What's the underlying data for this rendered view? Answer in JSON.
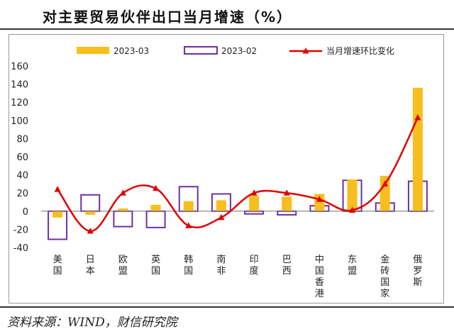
{
  "title": "对主要贸易伙伴出口当月增速（%）",
  "source": "资料来源：WIND，财信研究院",
  "colors": {
    "bar2303": "#F7BE1D",
    "bar2302": "#7030A0",
    "line": "#E00000"
  },
  "chart_data": {
    "type": "bar",
    "categories": [
      "美国",
      "日本",
      "欧盟",
      "英国",
      "韩国",
      "南非",
      "印度",
      "巴西",
      "中国香港",
      "东盟",
      "金砖国家",
      "俄罗斯"
    ],
    "series": [
      {
        "name": "2023-03",
        "type": "bar",
        "values": [
          -7,
          -4,
          3,
          7,
          11,
          12,
          17,
          16,
          19,
          35,
          39,
          136
        ]
      },
      {
        "name": "2023-02",
        "type": "bar-outline",
        "values": [
          -31,
          18,
          -17,
          -18,
          27,
          19,
          -3,
          -4,
          6,
          34,
          9,
          33
        ]
      },
      {
        "name": "当月增速环比变化",
        "type": "line",
        "values": [
          24,
          -22,
          20,
          25,
          -16,
          -7,
          20,
          20,
          13,
          1,
          30,
          103
        ]
      }
    ],
    "ylim": [
      -40,
      160
    ],
    "yticks": [
      -40,
      -20,
      0,
      20,
      40,
      60,
      80,
      100,
      120,
      140,
      160
    ],
    "legend_position": "top",
    "grid": false
  }
}
